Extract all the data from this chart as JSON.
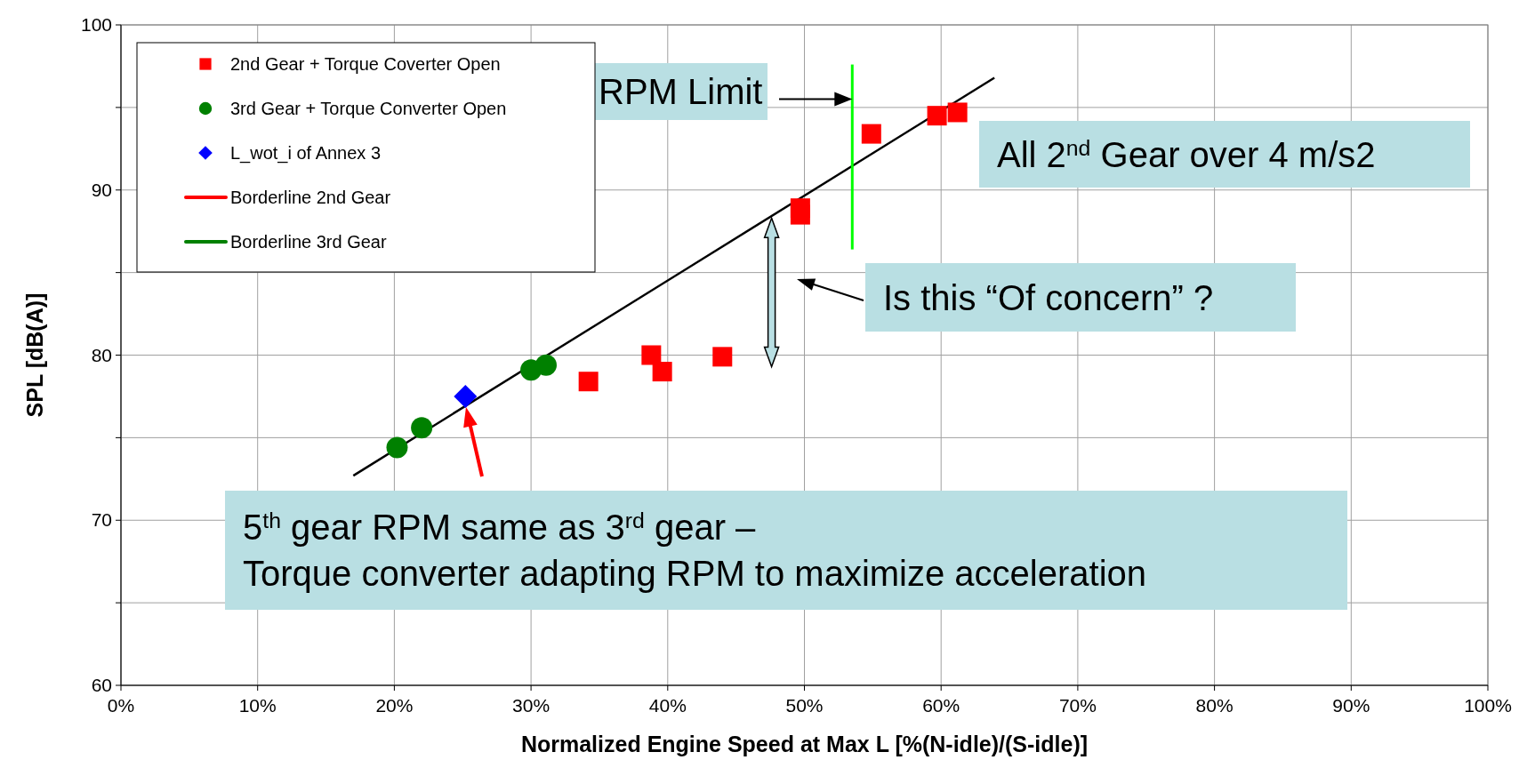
{
  "chart_data": {
    "type": "scatter",
    "xlabel": "Normalized Engine Speed at Max L [%(N-idle)/(S-idle)]",
    "ylabel": "SPL [dB(A)]",
    "xlim": [
      0,
      100
    ],
    "xticks": [
      {
        "value": 0,
        "label": "0%"
      },
      {
        "value": 10,
        "label": "10%"
      },
      {
        "value": 20,
        "label": "20%"
      },
      {
        "value": 30,
        "label": "30%"
      },
      {
        "value": 40,
        "label": "40%"
      },
      {
        "value": 50,
        "label": "50%"
      },
      {
        "value": 60,
        "label": "60%"
      },
      {
        "value": 70,
        "label": "70%"
      },
      {
        "value": 80,
        "label": "80%"
      },
      {
        "value": 90,
        "label": "90%"
      },
      {
        "value": 100,
        "label": "100%"
      }
    ],
    "ylim": [
      60,
      100
    ],
    "yticks": [
      60,
      {
        "value": 65,
        "label": null
      },
      70,
      {
        "value": 75,
        "label": null
      },
      80,
      {
        "value": 85,
        "label": null
      },
      90,
      {
        "value": 95,
        "label": null
      },
      100
    ],
    "grid": true,
    "legend": "top left",
    "series": [
      {
        "name": "2nd Gear + Torque Coverter Open",
        "marker": "square",
        "color": "#ff0000",
        "x": [
          34.2,
          38.8,
          39.6,
          44.0,
          49.7,
          49.7,
          54.9,
          59.7,
          61.2
        ],
        "values": [
          78.4,
          80.0,
          79.0,
          79.9,
          88.9,
          88.5,
          93.4,
          94.5,
          94.7
        ]
      },
      {
        "name": "3rd Gear + Torque Converter Open",
        "marker": "circle",
        "color": "#008000",
        "x": [
          20.2,
          22.0,
          30.0,
          31.1
        ],
        "values": [
          74.4,
          75.6,
          79.1,
          79.4
        ]
      },
      {
        "name": "L_wot_i of Annex 3",
        "marker": "diamond",
        "color": "#0000ff",
        "x": [
          25.2
        ],
        "values": [
          77.5
        ]
      },
      {
        "name": "Borderline 2nd Gear",
        "type": "line",
        "color": "#ff0000"
      },
      {
        "name": "Borderline 3rd Gear",
        "type": "line",
        "color": "#008000"
      },
      {
        "type": "line",
        "color": "#000000",
        "x": [
          17.0,
          63.9
        ],
        "values": [
          72.7,
          96.8
        ]
      },
      {
        "type": "line",
        "color": "#00ff00",
        "x": [
          53.5,
          53.5
        ],
        "values": [
          86.4,
          97.6
        ]
      }
    ],
    "annotations": [
      {
        "text": "RPM Limit",
        "x": 53.5,
        "y": 95.5
      },
      "All 2$^{nd}$ Gear over 4 m/s2",
      "Is this “Of concern” ?",
      "5$^{th}$ gear RPM same as 3$^{rd}$ gear –\nTorque converter adapting RPM to maximize acceleration"
    ]
  }
}
